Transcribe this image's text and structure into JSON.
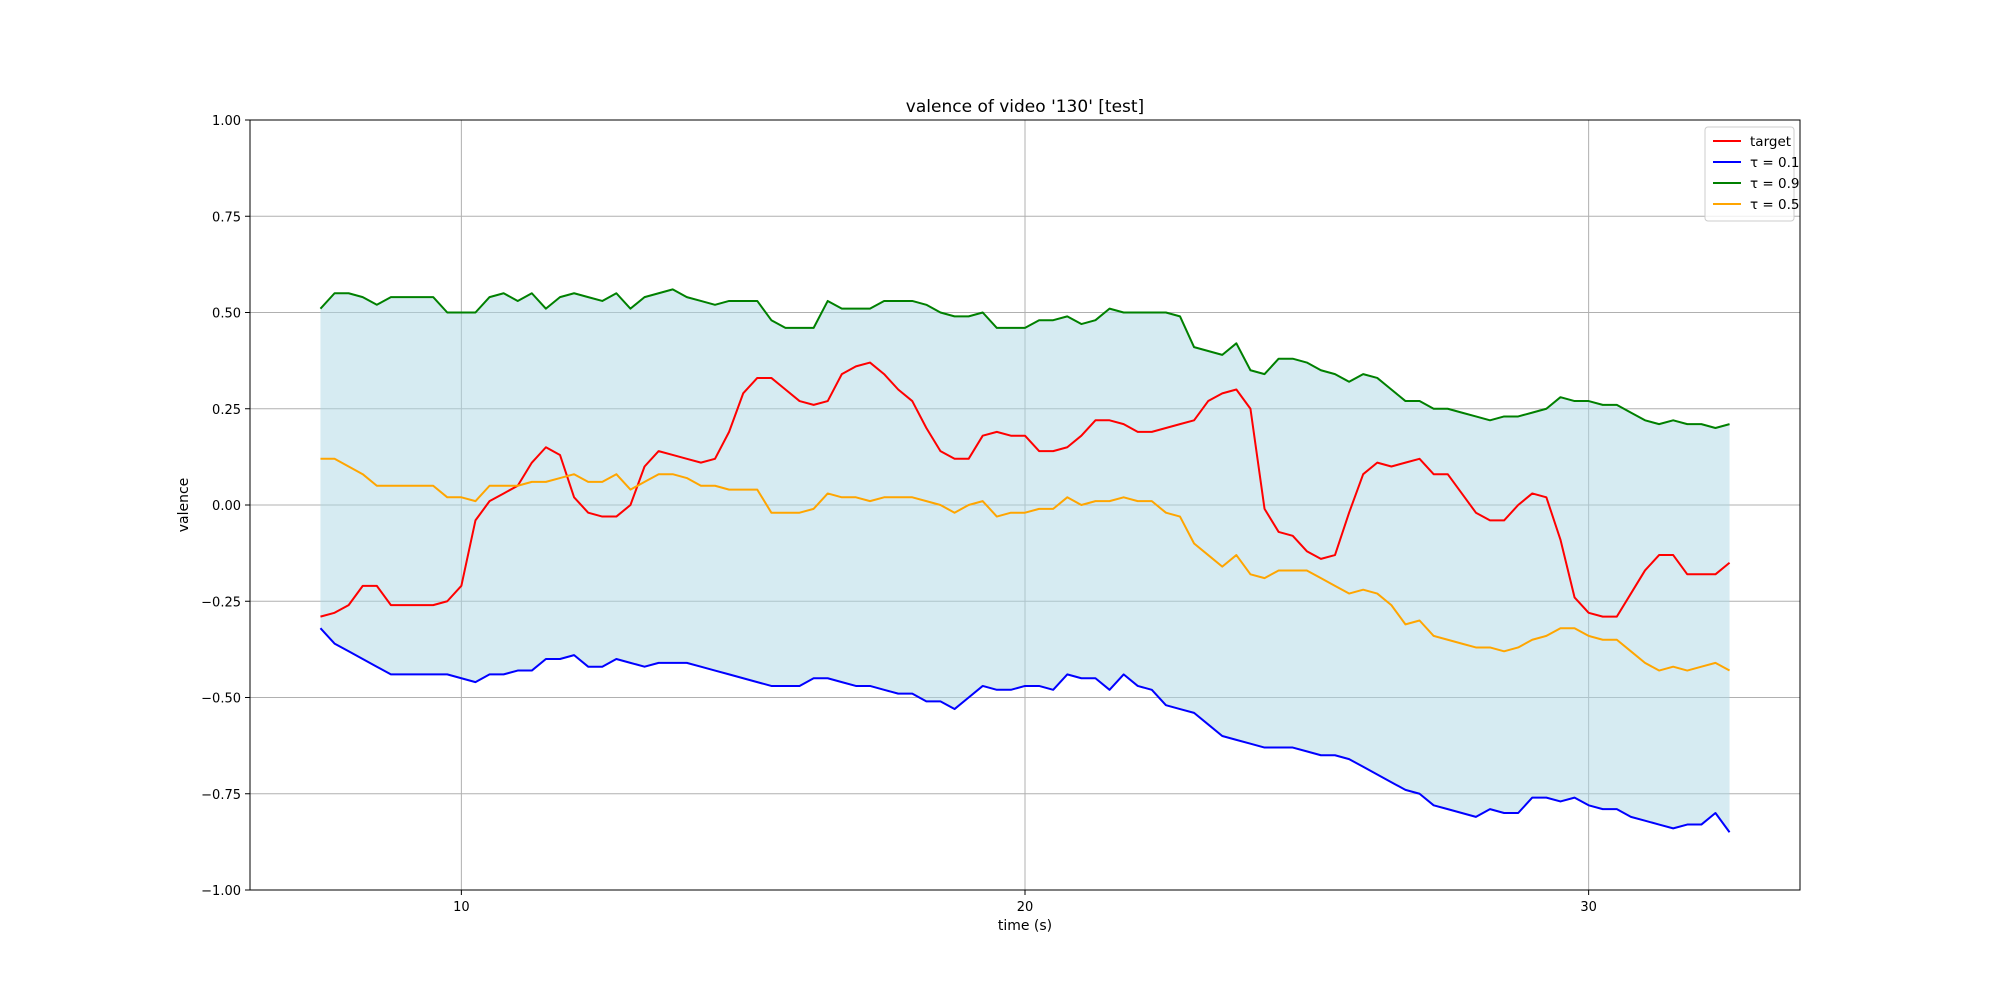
{
  "chart_data": {
    "type": "line",
    "title": "valence of video '130' [test]",
    "xlabel": "time (s)",
    "ylabel": "valence",
    "xlim": [
      6.25,
      33.75
    ],
    "ylim": [
      -1.0,
      1.0
    ],
    "xticks": [
      10,
      20,
      30
    ],
    "xtick_labels": [
      "10",
      "20",
      "30"
    ],
    "yticks": [
      -1.0,
      -0.75,
      -0.5,
      -0.25,
      0.0,
      0.25,
      0.5,
      0.75,
      1.0
    ],
    "ytick_labels": [
      "−1.00",
      "−0.75",
      "−0.50",
      "−0.25",
      "0.00",
      "0.25",
      "0.50",
      "0.75",
      "1.00"
    ],
    "grid": true,
    "legend_position": "top-right",
    "fill_between": {
      "lower": "τ = 0.1",
      "upper": "τ = 0.9",
      "color": "#add8e6",
      "opacity": 0.5
    },
    "series": [
      {
        "name": "target",
        "legend_label": "target",
        "color": "#ff0000",
        "x": [
          7.5,
          7.75,
          8.0,
          8.25,
          8.5,
          8.75,
          9.0,
          9.25,
          9.5,
          9.75,
          10.0,
          10.25,
          10.5,
          10.75,
          11.0,
          11.25,
          11.5,
          11.75,
          12.0,
          12.25,
          12.5,
          12.75,
          13.0,
          13.25,
          13.5,
          13.75,
          14.0,
          14.25,
          14.5,
          14.75,
          15.0,
          15.25,
          15.5,
          15.75,
          16.0,
          16.25,
          16.5,
          16.75,
          17.0,
          17.25,
          17.5,
          17.75,
          18.0,
          18.25,
          18.5,
          18.75,
          19.0,
          19.25,
          19.5,
          19.75,
          20.0,
          20.25,
          20.5,
          20.75,
          21.0,
          21.25,
          21.5,
          21.75,
          22.0,
          22.25,
          22.5,
          22.75,
          23.0,
          23.25,
          23.5,
          23.75,
          24.0,
          24.25,
          24.5,
          24.75,
          25.0,
          25.25,
          25.5,
          25.75,
          26.0,
          26.25,
          26.5,
          26.75,
          27.0,
          27.25,
          27.5,
          27.75,
          28.0,
          28.25,
          28.5,
          28.75,
          29.0,
          29.25,
          29.5,
          29.75,
          30.0,
          30.25,
          30.5,
          30.75,
          31.0,
          31.25,
          31.5,
          31.75,
          32.0,
          32.25,
          32.5
        ],
        "y": [
          -0.29,
          -0.28,
          -0.26,
          -0.21,
          -0.21,
          -0.26,
          -0.26,
          -0.26,
          -0.26,
          -0.25,
          -0.21,
          -0.04,
          0.01,
          0.03,
          0.05,
          0.11,
          0.15,
          0.13,
          0.02,
          -0.02,
          -0.03,
          -0.03,
          0.0,
          0.1,
          0.14,
          0.13,
          0.12,
          0.11,
          0.12,
          0.19,
          0.29,
          0.33,
          0.33,
          0.3,
          0.27,
          0.26,
          0.27,
          0.34,
          0.36,
          0.37,
          0.34,
          0.3,
          0.27,
          0.2,
          0.14,
          0.12,
          0.12,
          0.18,
          0.19,
          0.18,
          0.18,
          0.14,
          0.14,
          0.15,
          0.18,
          0.22,
          0.22,
          0.21,
          0.19,
          0.19,
          0.2,
          0.21,
          0.22,
          0.27,
          0.29,
          0.3,
          0.25,
          -0.01,
          -0.07,
          -0.08,
          -0.12,
          -0.14,
          -0.13,
          -0.02,
          0.08,
          0.11,
          0.1,
          0.11,
          0.12,
          0.08,
          0.08,
          0.03,
          -0.02,
          -0.04,
          -0.04,
          0.0,
          0.03,
          0.02,
          -0.09,
          -0.24,
          -0.28,
          -0.29,
          -0.29,
          -0.23,
          -0.17,
          -0.13,
          -0.13,
          -0.18,
          -0.18,
          -0.18,
          -0.15
        ]
      },
      {
        "name": "τ = 0.1",
        "legend_label": "τ = 0.1",
        "color": "#0000ff",
        "x": [
          7.5,
          7.75,
          8.0,
          8.25,
          8.5,
          8.75,
          9.0,
          9.25,
          9.5,
          9.75,
          10.0,
          10.25,
          10.5,
          10.75,
          11.0,
          11.25,
          11.5,
          11.75,
          12.0,
          12.25,
          12.5,
          12.75,
          13.0,
          13.25,
          13.5,
          13.75,
          14.0,
          14.25,
          14.5,
          14.75,
          15.0,
          15.25,
          15.5,
          15.75,
          16.0,
          16.25,
          16.5,
          16.75,
          17.0,
          17.25,
          17.5,
          17.75,
          18.0,
          18.25,
          18.5,
          18.75,
          19.0,
          19.25,
          19.5,
          19.75,
          20.0,
          20.25,
          20.5,
          20.75,
          21.0,
          21.25,
          21.5,
          21.75,
          22.0,
          22.25,
          22.5,
          22.75,
          23.0,
          23.25,
          23.5,
          23.75,
          24.0,
          24.25,
          24.5,
          24.75,
          25.0,
          25.25,
          25.5,
          25.75,
          26.0,
          26.25,
          26.5,
          26.75,
          27.0,
          27.25,
          27.5,
          27.75,
          28.0,
          28.25,
          28.5,
          28.75,
          29.0,
          29.25,
          29.5,
          29.75,
          30.0,
          30.25,
          30.5,
          30.75,
          31.0,
          31.25,
          31.5,
          31.75,
          32.0,
          32.25,
          32.5
        ],
        "y": [
          -0.32,
          -0.36,
          -0.38,
          -0.4,
          -0.42,
          -0.44,
          -0.44,
          -0.44,
          -0.44,
          -0.44,
          -0.45,
          -0.46,
          -0.44,
          -0.44,
          -0.43,
          -0.43,
          -0.4,
          -0.4,
          -0.39,
          -0.42,
          -0.42,
          -0.4,
          -0.41,
          -0.42,
          -0.41,
          -0.41,
          -0.41,
          -0.42,
          -0.43,
          -0.44,
          -0.45,
          -0.46,
          -0.47,
          -0.47,
          -0.47,
          -0.45,
          -0.45,
          -0.46,
          -0.47,
          -0.47,
          -0.48,
          -0.49,
          -0.49,
          -0.51,
          -0.51,
          -0.53,
          -0.5,
          -0.47,
          -0.48,
          -0.48,
          -0.47,
          -0.47,
          -0.48,
          -0.44,
          -0.45,
          -0.45,
          -0.48,
          -0.44,
          -0.47,
          -0.48,
          -0.52,
          -0.53,
          -0.54,
          -0.57,
          -0.6,
          -0.61,
          -0.62,
          -0.63,
          -0.63,
          -0.63,
          -0.64,
          -0.65,
          -0.65,
          -0.66,
          -0.68,
          -0.7,
          -0.72,
          -0.74,
          -0.75,
          -0.78,
          -0.79,
          -0.8,
          -0.81,
          -0.79,
          -0.8,
          -0.8,
          -0.76,
          -0.76,
          -0.77,
          -0.76,
          -0.78,
          -0.79,
          -0.79,
          -0.81,
          -0.82,
          -0.83,
          -0.84,
          -0.83,
          -0.83,
          -0.8,
          -0.85
        ]
      },
      {
        "name": "τ = 0.9",
        "legend_label": "τ = 0.9",
        "color": "#008000",
        "x": [
          7.5,
          7.75,
          8.0,
          8.25,
          8.5,
          8.75,
          9.0,
          9.25,
          9.5,
          9.75,
          10.0,
          10.25,
          10.5,
          10.75,
          11.0,
          11.25,
          11.5,
          11.75,
          12.0,
          12.25,
          12.5,
          12.75,
          13.0,
          13.25,
          13.5,
          13.75,
          14.0,
          14.25,
          14.5,
          14.75,
          15.0,
          15.25,
          15.5,
          15.75,
          16.0,
          16.25,
          16.5,
          16.75,
          17.0,
          17.25,
          17.5,
          17.75,
          18.0,
          18.25,
          18.5,
          18.75,
          19.0,
          19.25,
          19.5,
          19.75,
          20.0,
          20.25,
          20.5,
          20.75,
          21.0,
          21.25,
          21.5,
          21.75,
          22.0,
          22.25,
          22.5,
          22.75,
          23.0,
          23.25,
          23.5,
          23.75,
          24.0,
          24.25,
          24.5,
          24.75,
          25.0,
          25.25,
          25.5,
          25.75,
          26.0,
          26.25,
          26.5,
          26.75,
          27.0,
          27.25,
          27.5,
          27.75,
          28.0,
          28.25,
          28.5,
          28.75,
          29.0,
          29.25,
          29.5,
          29.75,
          30.0,
          30.25,
          30.5,
          30.75,
          31.0,
          31.25,
          31.5,
          31.75,
          32.0,
          32.25,
          32.5
        ],
        "y": [
          0.51,
          0.55,
          0.55,
          0.54,
          0.52,
          0.54,
          0.54,
          0.54,
          0.54,
          0.5,
          0.5,
          0.5,
          0.54,
          0.55,
          0.53,
          0.55,
          0.51,
          0.54,
          0.55,
          0.54,
          0.53,
          0.55,
          0.51,
          0.54,
          0.55,
          0.56,
          0.54,
          0.53,
          0.52,
          0.53,
          0.53,
          0.53,
          0.48,
          0.46,
          0.46,
          0.46,
          0.53,
          0.51,
          0.51,
          0.51,
          0.53,
          0.53,
          0.53,
          0.52,
          0.5,
          0.49,
          0.49,
          0.5,
          0.46,
          0.46,
          0.46,
          0.48,
          0.48,
          0.49,
          0.47,
          0.48,
          0.51,
          0.5,
          0.5,
          0.5,
          0.5,
          0.49,
          0.41,
          0.4,
          0.39,
          0.42,
          0.35,
          0.34,
          0.38,
          0.38,
          0.37,
          0.35,
          0.34,
          0.32,
          0.34,
          0.33,
          0.3,
          0.27,
          0.27,
          0.25,
          0.25,
          0.24,
          0.23,
          0.22,
          0.23,
          0.23,
          0.24,
          0.25,
          0.28,
          0.27,
          0.27,
          0.26,
          0.26,
          0.24,
          0.22,
          0.21,
          0.22,
          0.21,
          0.21,
          0.2,
          0.21
        ]
      },
      {
        "name": "τ = 0.5",
        "legend_label": "τ = 0.5",
        "color": "#ffa500",
        "x": [
          7.5,
          7.75,
          8.0,
          8.25,
          8.5,
          8.75,
          9.0,
          9.25,
          9.5,
          9.75,
          10.0,
          10.25,
          10.5,
          10.75,
          11.0,
          11.25,
          11.5,
          11.75,
          12.0,
          12.25,
          12.5,
          12.75,
          13.0,
          13.25,
          13.5,
          13.75,
          14.0,
          14.25,
          14.5,
          14.75,
          15.0,
          15.25,
          15.5,
          15.75,
          16.0,
          16.25,
          16.5,
          16.75,
          17.0,
          17.25,
          17.5,
          17.75,
          18.0,
          18.25,
          18.5,
          18.75,
          19.0,
          19.25,
          19.5,
          19.75,
          20.0,
          20.25,
          20.5,
          20.75,
          21.0,
          21.25,
          21.5,
          21.75,
          22.0,
          22.25,
          22.5,
          22.75,
          23.0,
          23.25,
          23.5,
          23.75,
          24.0,
          24.25,
          24.5,
          24.75,
          25.0,
          25.25,
          25.5,
          25.75,
          26.0,
          26.25,
          26.5,
          26.75,
          27.0,
          27.25,
          27.5,
          27.75,
          28.0,
          28.25,
          28.5,
          28.75,
          29.0,
          29.25,
          29.5,
          29.75,
          30.0,
          30.25,
          30.5,
          30.75,
          31.0,
          31.25,
          31.5,
          31.75,
          32.0,
          32.25,
          32.5
        ],
        "y": [
          0.12,
          0.12,
          0.1,
          0.08,
          0.05,
          0.05,
          0.05,
          0.05,
          0.05,
          0.02,
          0.02,
          0.01,
          0.05,
          0.05,
          0.05,
          0.06,
          0.06,
          0.07,
          0.08,
          0.06,
          0.06,
          0.08,
          0.04,
          0.06,
          0.08,
          0.08,
          0.07,
          0.05,
          0.05,
          0.04,
          0.04,
          0.04,
          -0.02,
          -0.02,
          -0.02,
          -0.01,
          0.03,
          0.02,
          0.02,
          0.01,
          0.02,
          0.02,
          0.02,
          0.01,
          0.0,
          -0.02,
          0.0,
          0.01,
          -0.03,
          -0.02,
          -0.02,
          -0.01,
          -0.01,
          0.02,
          0.0,
          0.01,
          0.01,
          0.02,
          0.01,
          0.01,
          -0.02,
          -0.03,
          -0.1,
          -0.13,
          -0.16,
          -0.13,
          -0.18,
          -0.19,
          -0.17,
          -0.17,
          -0.17,
          -0.19,
          -0.21,
          -0.23,
          -0.22,
          -0.23,
          -0.26,
          -0.31,
          -0.3,
          -0.34,
          -0.35,
          -0.36,
          -0.37,
          -0.37,
          -0.38,
          -0.37,
          -0.35,
          -0.34,
          -0.32,
          -0.32,
          -0.34,
          -0.35,
          -0.35,
          -0.38,
          -0.41,
          -0.43,
          -0.42,
          -0.43,
          -0.42,
          -0.41,
          -0.43
        ]
      }
    ]
  }
}
